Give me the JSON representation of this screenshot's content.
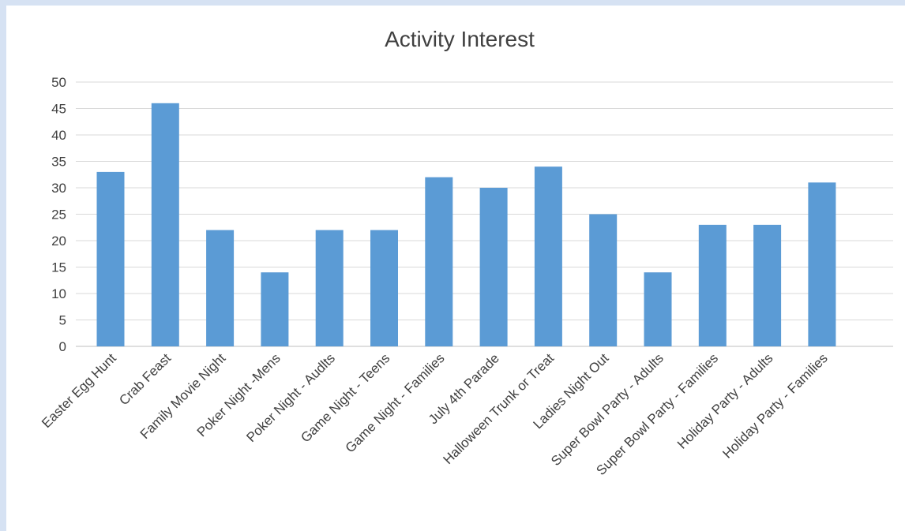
{
  "chart_data": {
    "type": "bar",
    "title": "Activity Interest",
    "xlabel": "",
    "ylabel": "",
    "categories": [
      "Easter Egg Hunt",
      "Crab Feast",
      "Family Movie Night",
      "Poker Night -Mens",
      "Poker Night - Audlts",
      "Game Night - Teens",
      "Game Night - Families",
      "July 4th Parade",
      "Halloween Trunk or Treat",
      "Ladies Night Out",
      "Super Bowl Party - Adults",
      "Super Bowl Party - Families",
      "Holiday Party - Adults",
      "Holiday Party - Families"
    ],
    "values": [
      33,
      46,
      22,
      14,
      22,
      22,
      32,
      30,
      34,
      25,
      14,
      23,
      23,
      31
    ],
    "ylim": [
      0,
      50
    ],
    "yticks": [
      "0",
      "5",
      "10",
      "15",
      "20",
      "25",
      "30",
      "35",
      "40",
      "45",
      "50"
    ],
    "grid": true,
    "legend": "none",
    "bar_color": "#5b9bd5"
  }
}
